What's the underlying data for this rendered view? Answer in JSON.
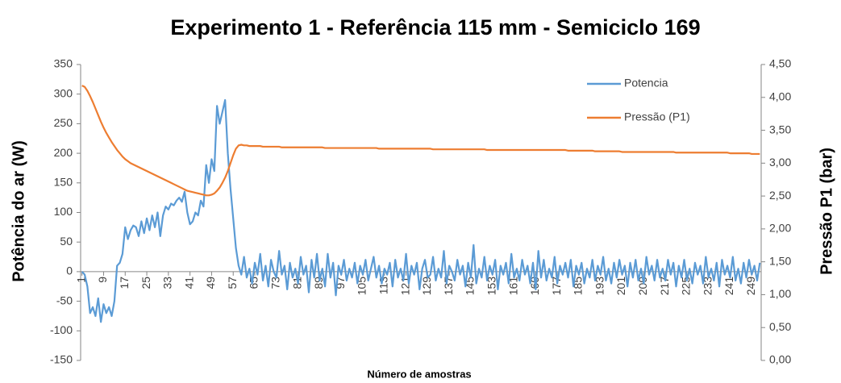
{
  "chart_data": {
    "type": "line",
    "title": "Experimento 1 - Referência 115 mm - Semiciclo 169",
    "x_label": "Número de amostras",
    "y_label": "Potência do ar (W)",
    "y2_label": "Pressão P1 (bar)",
    "legend": "top-right",
    "x": [
      1,
      2,
      3,
      4,
      5,
      6,
      7,
      8,
      9,
      10,
      11,
      12,
      13,
      14,
      15,
      16,
      17,
      18,
      19,
      20,
      21,
      22,
      23,
      24,
      25,
      26,
      27,
      28,
      29,
      30,
      31,
      32,
      33,
      34,
      35,
      36,
      37,
      38,
      39,
      40,
      41,
      42,
      43,
      44,
      45,
      46,
      47,
      48,
      49,
      50,
      51,
      52,
      53,
      54,
      55,
      56,
      57,
      58,
      59,
      60,
      61,
      62,
      63,
      64,
      65,
      66,
      67,
      68,
      69,
      70,
      71,
      72,
      73,
      74,
      75,
      76,
      77,
      78,
      79,
      80,
      81,
      82,
      83,
      84,
      85,
      86,
      87,
      88,
      89,
      90,
      91,
      92,
      93,
      94,
      95,
      96,
      97,
      98,
      99,
      100,
      101,
      102,
      103,
      104,
      105,
      106,
      107,
      108,
      109,
      110,
      111,
      112,
      113,
      114,
      115,
      116,
      117,
      118,
      119,
      120,
      121,
      122,
      123,
      124,
      125,
      126,
      127,
      128,
      129,
      130,
      131,
      132,
      133,
      134,
      135,
      136,
      137,
      138,
      139,
      140,
      141,
      142,
      143,
      144,
      145,
      146,
      147,
      148,
      149,
      150,
      151,
      152,
      153,
      154,
      155,
      156,
      157,
      158,
      159,
      160,
      161,
      162,
      163,
      164,
      165,
      166,
      167,
      168,
      169,
      170,
      171,
      172,
      173,
      174,
      175,
      176,
      177,
      178,
      179,
      180,
      181,
      182,
      183,
      184,
      185,
      186,
      187,
      188,
      189,
      190,
      191,
      192,
      193,
      194,
      195,
      196,
      197,
      198,
      199,
      200,
      201,
      202,
      203,
      204,
      205,
      206,
      207,
      208,
      209,
      210,
      211,
      212,
      213,
      214,
      215,
      216,
      217,
      218,
      219,
      220,
      221,
      222,
      223,
      224,
      225,
      226,
      227,
      228,
      229,
      230,
      231,
      232,
      233,
      234,
      235,
      236,
      237,
      238,
      239,
      240,
      241,
      242,
      243,
      244,
      245,
      246,
      247,
      248,
      249,
      250,
      251,
      252
    ],
    "xlim": [
      0.5,
      252.5
    ],
    "xticks": [
      1,
      9,
      17,
      25,
      33,
      41,
      49,
      57,
      65,
      73,
      81,
      89,
      97,
      105,
      113,
      121,
      129,
      137,
      145,
      153,
      161,
      169,
      177,
      185,
      193,
      201,
      209,
      217,
      225,
      233,
      241,
      249
    ],
    "ylim": [
      -150,
      350
    ],
    "yticks": [
      -150,
      -100,
      -50,
      0,
      50,
      100,
      150,
      200,
      250,
      300,
      350
    ],
    "y2lim": [
      0,
      4.5
    ],
    "y2ticks": [
      {
        "value": 0,
        "label": "0,00"
      },
      {
        "value": 0.5,
        "label": "0,50"
      },
      {
        "value": 1,
        "label": "1,00"
      },
      {
        "value": 1.5,
        "label": "1,50"
      },
      {
        "value": 2,
        "label": "2,00"
      },
      {
        "value": 2.5,
        "label": "2,50"
      },
      {
        "value": 3,
        "label": "3,00"
      },
      {
        "value": 3.5,
        "label": "3,50"
      },
      {
        "value": 4,
        "label": "4,00"
      },
      {
        "value": 4.5,
        "label": "4,50"
      }
    ],
    "series": [
      {
        "name": "Potencia",
        "color": "#5b9bd5",
        "values": [
          0,
          -5,
          -25,
          -70,
          -60,
          -75,
          -45,
          -85,
          -55,
          -70,
          -60,
          -75,
          -50,
          10,
          15,
          30,
          75,
          55,
          70,
          78,
          75,
          60,
          85,
          65,
          90,
          70,
          95,
          75,
          100,
          60,
          95,
          110,
          105,
          115,
          112,
          120,
          125,
          118,
          135,
          100,
          80,
          85,
          100,
          95,
          120,
          110,
          180,
          150,
          190,
          170,
          280,
          250,
          270,
          290,
          200,
          140,
          90,
          40,
          10,
          -5,
          25,
          -10,
          5,
          -20,
          15,
          -5,
          30,
          -15,
          10,
          -25,
          20,
          0,
          -10,
          35,
          -5,
          10,
          -30,
          15,
          -10,
          5,
          -20,
          25,
          -5,
          10,
          -35,
          20,
          -10,
          30,
          -15,
          5,
          -25,
          30,
          -10,
          15,
          -40,
          10,
          -5,
          20,
          -15,
          5,
          -10,
          15,
          -20,
          10,
          -5,
          20,
          -15,
          5,
          25,
          -10,
          10,
          -20,
          5,
          -5,
          15,
          -25,
          20,
          -10,
          5,
          -15,
          30,
          -20,
          10,
          -5,
          15,
          -30,
          5,
          20,
          -10,
          -5,
          25,
          -15,
          5,
          -10,
          35,
          -20,
          10,
          0,
          -15,
          20,
          -5,
          10,
          -25,
          15,
          -10,
          45,
          -20,
          5,
          -10,
          25,
          -15,
          10,
          -5,
          20,
          -30,
          10,
          -5,
          15,
          -20,
          30,
          -10,
          5,
          -15,
          20,
          -5,
          10,
          -20,
          15,
          -30,
          35,
          -10,
          20,
          -15,
          5,
          -10,
          25,
          -20,
          10,
          -5,
          15,
          -10,
          20,
          -25,
          10,
          -5,
          15,
          -20,
          5,
          -10,
          20,
          -15,
          10,
          -5,
          25,
          -15,
          5,
          -20,
          15,
          -10,
          20,
          -5,
          10,
          -25,
          15,
          -10,
          20,
          -15,
          5,
          -20,
          25,
          -5,
          10,
          -15,
          20,
          -10,
          5,
          -15,
          20,
          -5,
          15,
          -25,
          10,
          -10,
          20,
          -15,
          5,
          -20,
          15,
          -5,
          10,
          -20,
          25,
          -10,
          5,
          -15,
          15,
          -25,
          20,
          -5,
          10,
          -10,
          25,
          -15,
          5,
          -20,
          15,
          -10,
          20,
          -5,
          10,
          -15,
          15
        ]
      },
      {
        "name": "Pressão (P1)",
        "color": "#ed7d31",
        "axis": "y2",
        "values": [
          4.18,
          4.16,
          4.1,
          4.02,
          3.93,
          3.83,
          3.73,
          3.63,
          3.54,
          3.46,
          3.39,
          3.32,
          3.26,
          3.2,
          3.15,
          3.1,
          3.06,
          3.03,
          3.0,
          2.98,
          2.96,
          2.94,
          2.92,
          2.9,
          2.88,
          2.86,
          2.84,
          2.82,
          2.8,
          2.78,
          2.76,
          2.74,
          2.72,
          2.7,
          2.68,
          2.66,
          2.64,
          2.62,
          2.6,
          2.58,
          2.57,
          2.56,
          2.55,
          2.54,
          2.53,
          2.52,
          2.51,
          2.51,
          2.52,
          2.54,
          2.58,
          2.63,
          2.7,
          2.78,
          2.88,
          3.0,
          3.12,
          3.22,
          3.27,
          3.28,
          3.27,
          3.27,
          3.26,
          3.26,
          3.26,
          3.26,
          3.26,
          3.25,
          3.25,
          3.25,
          3.25,
          3.25,
          3.25,
          3.25,
          3.24,
          3.24,
          3.24,
          3.24,
          3.24,
          3.24,
          3.24,
          3.24,
          3.24,
          3.24,
          3.24,
          3.24,
          3.24,
          3.24,
          3.24,
          3.24,
          3.23,
          3.23,
          3.23,
          3.23,
          3.23,
          3.23,
          3.23,
          3.23,
          3.23,
          3.23,
          3.23,
          3.23,
          3.23,
          3.23,
          3.23,
          3.23,
          3.23,
          3.23,
          3.23,
          3.23,
          3.22,
          3.22,
          3.22,
          3.22,
          3.22,
          3.22,
          3.22,
          3.22,
          3.22,
          3.22,
          3.22,
          3.22,
          3.22,
          3.22,
          3.22,
          3.22,
          3.22,
          3.22,
          3.22,
          3.22,
          3.21,
          3.21,
          3.21,
          3.21,
          3.21,
          3.21,
          3.21,
          3.21,
          3.21,
          3.21,
          3.21,
          3.21,
          3.21,
          3.21,
          3.21,
          3.21,
          3.21,
          3.21,
          3.21,
          3.21,
          3.2,
          3.2,
          3.2,
          3.2,
          3.2,
          3.2,
          3.2,
          3.2,
          3.2,
          3.2,
          3.2,
          3.2,
          3.2,
          3.2,
          3.2,
          3.2,
          3.2,
          3.2,
          3.2,
          3.2,
          3.2,
          3.2,
          3.2,
          3.2,
          3.2,
          3.2,
          3.2,
          3.2,
          3.2,
          3.2,
          3.19,
          3.19,
          3.19,
          3.19,
          3.19,
          3.19,
          3.19,
          3.19,
          3.19,
          3.19,
          3.18,
          3.18,
          3.18,
          3.18,
          3.18,
          3.18,
          3.18,
          3.18,
          3.18,
          3.18,
          3.17,
          3.17,
          3.17,
          3.17,
          3.17,
          3.17,
          3.17,
          3.17,
          3.17,
          3.17,
          3.17,
          3.17,
          3.17,
          3.17,
          3.17,
          3.17,
          3.17,
          3.17,
          3.17,
          3.17,
          3.16,
          3.16,
          3.16,
          3.16,
          3.16,
          3.16,
          3.16,
          3.16,
          3.16,
          3.16,
          3.16,
          3.16,
          3.16,
          3.16,
          3.16,
          3.16,
          3.16,
          3.16,
          3.16,
          3.16,
          3.15,
          3.15,
          3.15,
          3.15,
          3.15,
          3.15,
          3.15,
          3.15,
          3.14,
          3.14,
          3.14,
          3.14
        ]
      }
    ]
  }
}
